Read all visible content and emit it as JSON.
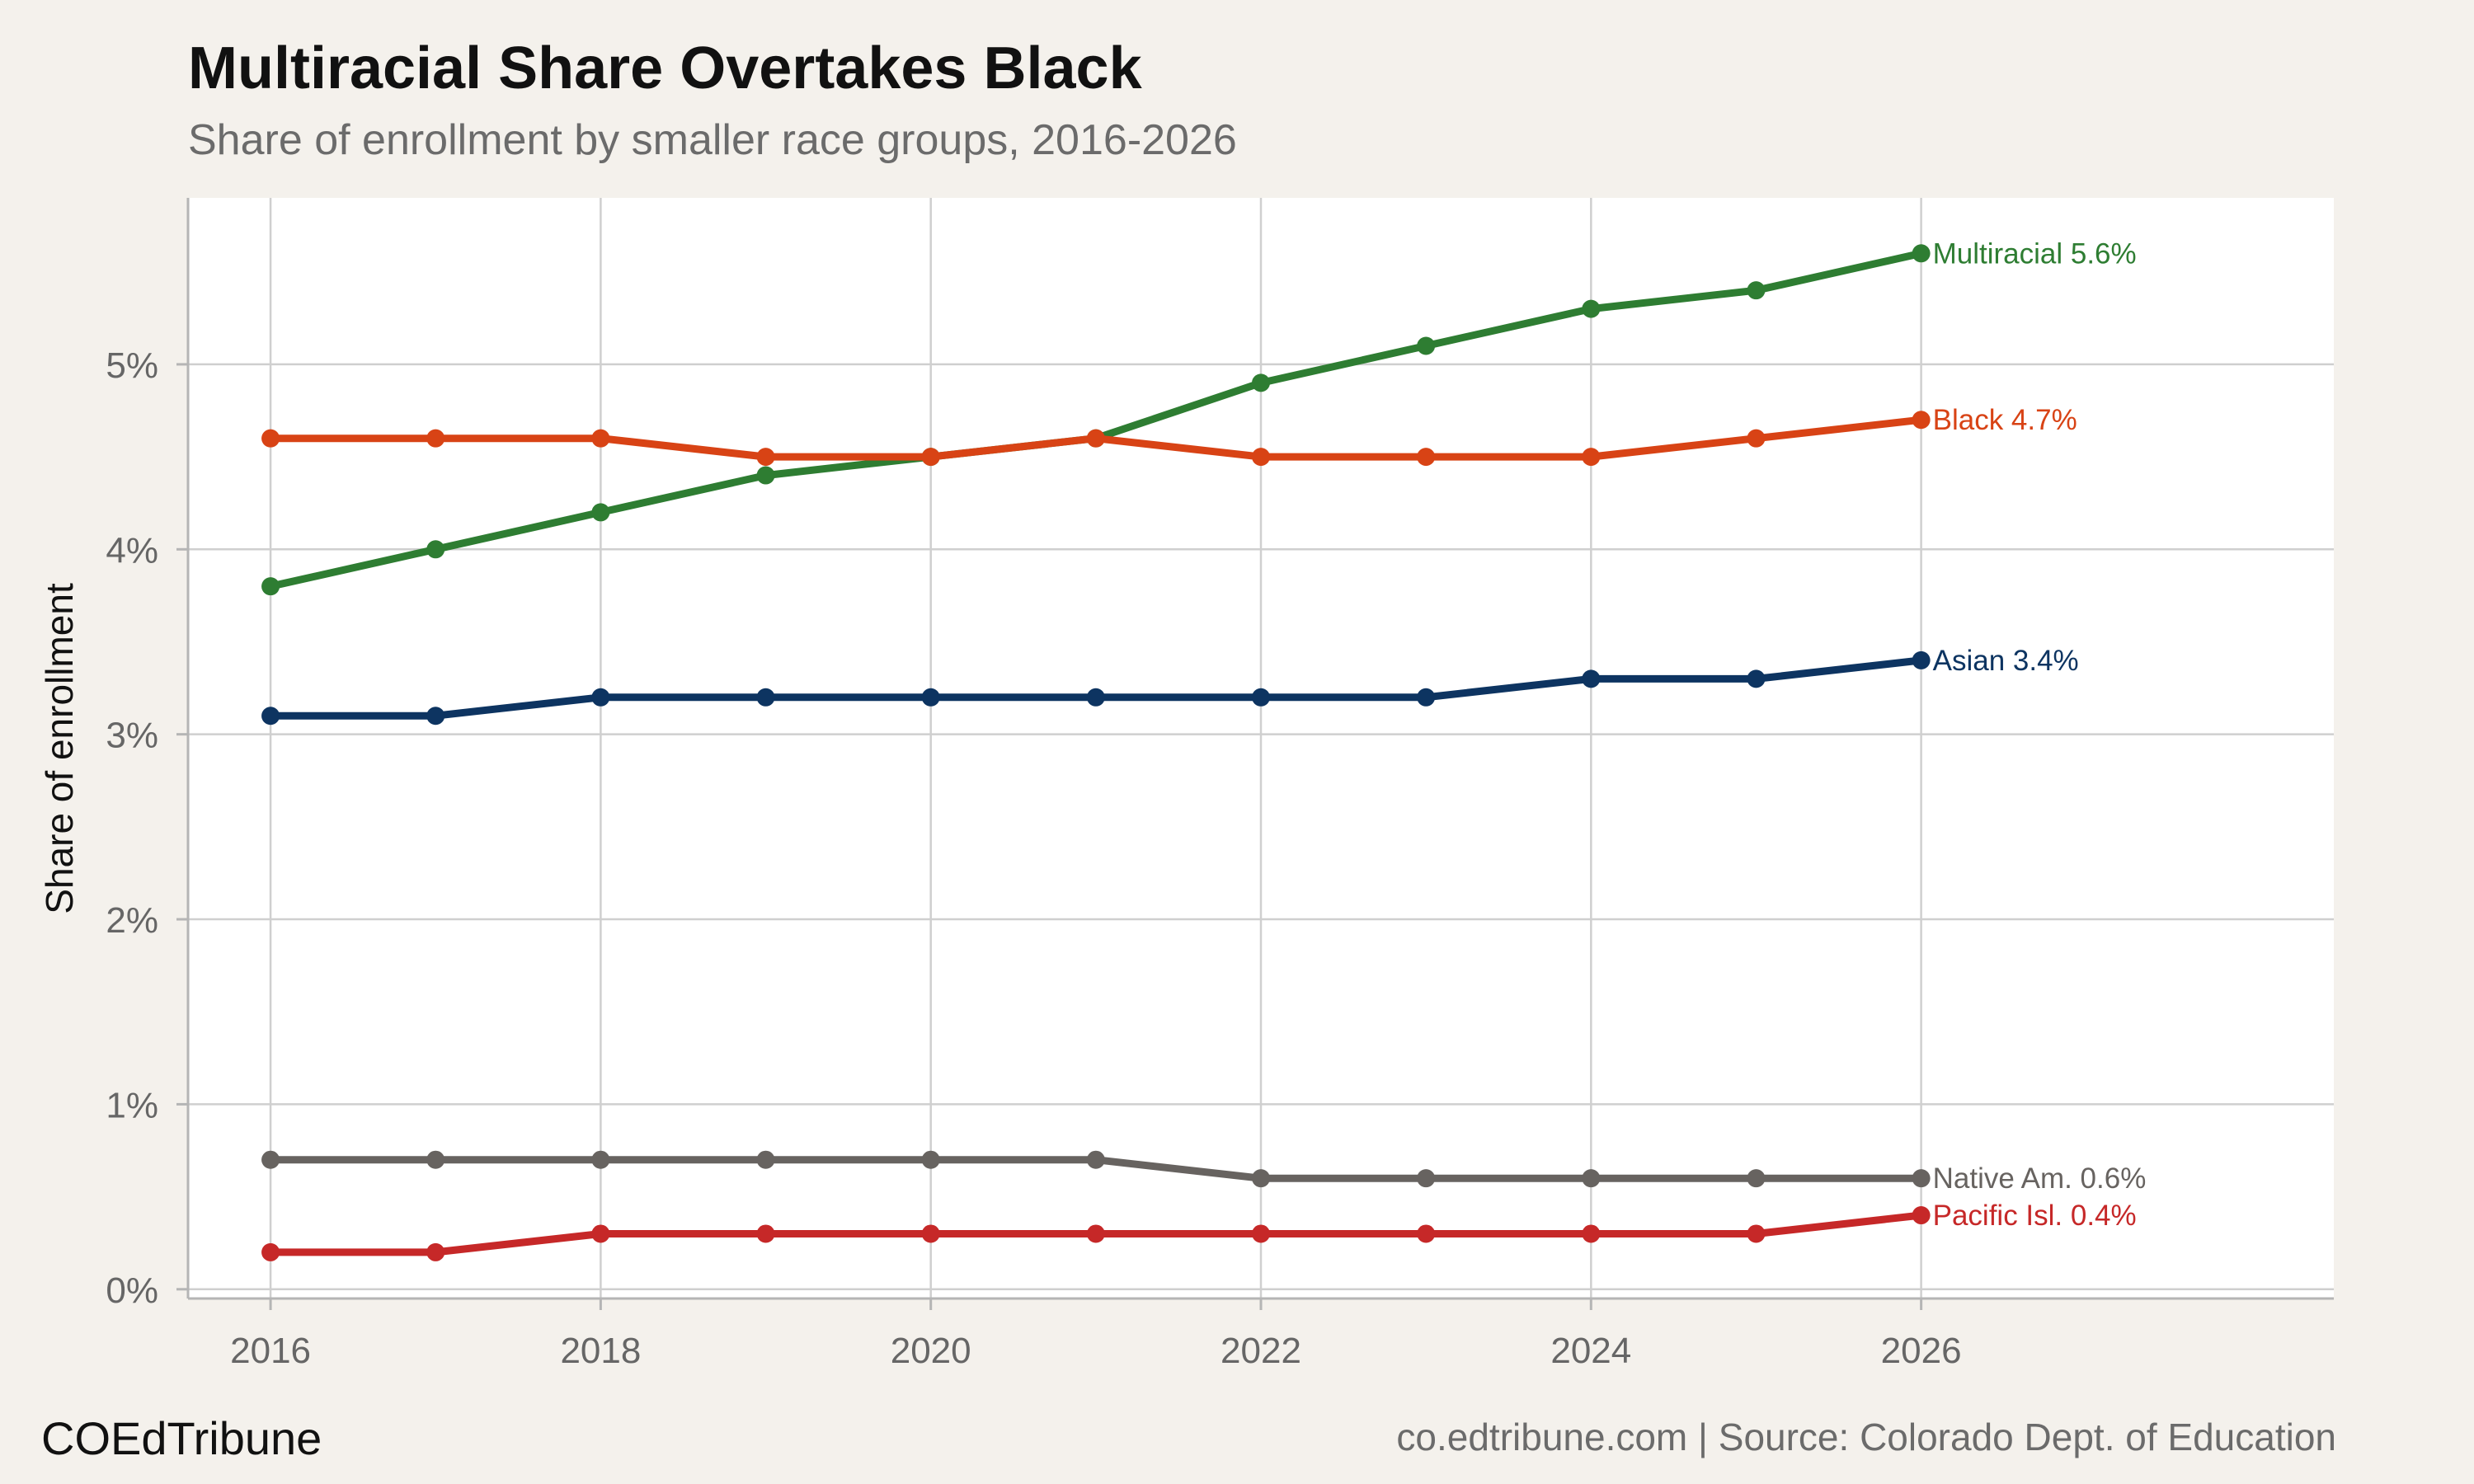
{
  "header": {
    "title": "Multiracial Share Overtakes Black",
    "subtitle": "Share of enrollment by smaller race groups, 2016-2026"
  },
  "footer": {
    "brand": "COEdTribune",
    "source": "co.edtribune.com | Source: Colorado Dept. of Education"
  },
  "chart_data": {
    "type": "line",
    "title": "Multiracial Share Overtakes Black",
    "subtitle": "Share of enrollment by smaller race groups, 2016-2026",
    "xlabel": "",
    "ylabel": "Share of enrollment",
    "x": [
      2016,
      2017,
      2018,
      2019,
      2020,
      2021,
      2022,
      2023,
      2024,
      2025,
      2026
    ],
    "xticks": [
      2016,
      2018,
      2020,
      2022,
      2024,
      2026
    ],
    "xtick_labels": [
      "2016",
      "2018",
      "2020",
      "2022",
      "2024",
      "2026"
    ],
    "yticks": [
      0,
      1,
      2,
      3,
      4,
      5
    ],
    "ytick_labels": [
      "0%",
      "1%",
      "2%",
      "3%",
      "4%",
      "5%"
    ],
    "xlim": [
      2015.5,
      2028.5
    ],
    "ylim": [
      -0.05,
      5.9
    ],
    "grid": true,
    "legend": "direct end labels",
    "series": [
      {
        "name": "Multiracial",
        "end_label": "Multiracial 5.6%",
        "color": "#2e7d32",
        "values": [
          3.8,
          4.0,
          4.2,
          4.4,
          4.5,
          4.6,
          4.9,
          5.1,
          5.3,
          5.4,
          5.6
        ]
      },
      {
        "name": "Black",
        "end_label": "Black 4.7%",
        "color": "#d84315",
        "values": [
          4.6,
          4.6,
          4.6,
          4.5,
          4.5,
          4.6,
          4.5,
          4.5,
          4.5,
          4.6,
          4.7
        ]
      },
      {
        "name": "Asian",
        "end_label": "Asian 3.4%",
        "color": "#0d3461",
        "values": [
          3.1,
          3.1,
          3.2,
          3.2,
          3.2,
          3.2,
          3.2,
          3.2,
          3.3,
          3.3,
          3.4
        ]
      },
      {
        "name": "Native Am.",
        "end_label": "Native Am. 0.6%",
        "color": "#676360",
        "values": [
          0.7,
          0.7,
          0.7,
          0.7,
          0.7,
          0.7,
          0.6,
          0.6,
          0.6,
          0.6,
          0.6
        ]
      },
      {
        "name": "Pacific Isl.",
        "end_label": "Pacific Isl. 0.4%",
        "color": "#c62828",
        "values": [
          0.2,
          0.2,
          0.3,
          0.3,
          0.3,
          0.3,
          0.3,
          0.3,
          0.3,
          0.3,
          0.4
        ]
      }
    ]
  }
}
